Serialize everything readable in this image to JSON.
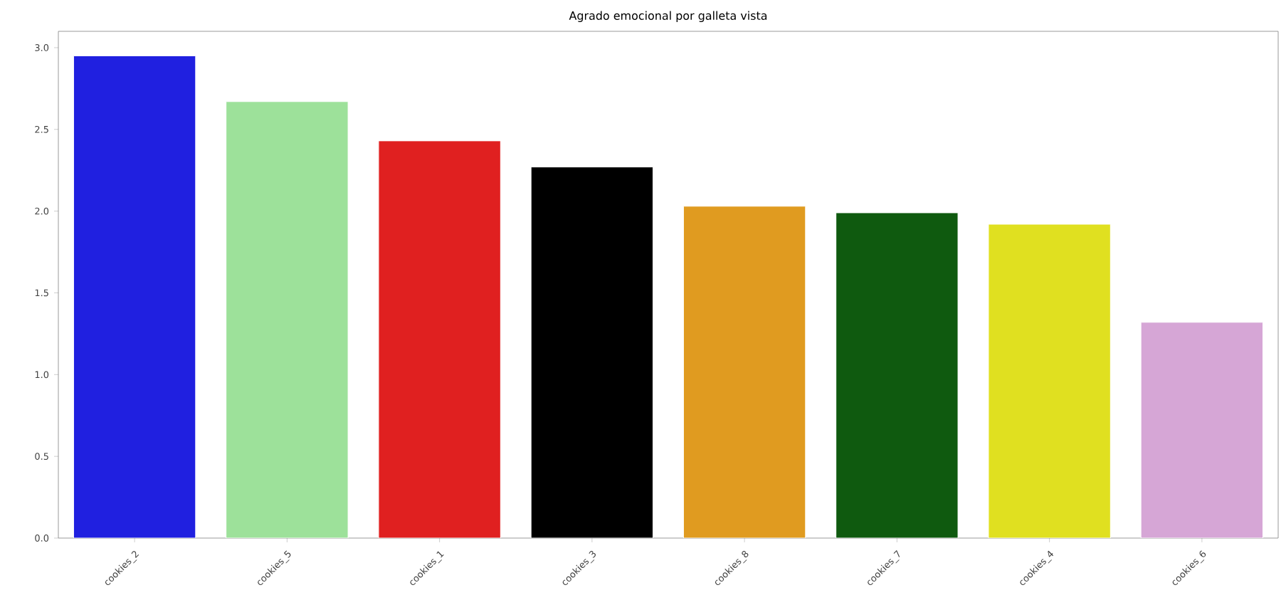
{
  "chart_data": {
    "type": "bar",
    "title": "Agrado emocional por galleta vista",
    "categories": [
      "cookies_2",
      "cookies_5",
      "cookies_1",
      "cookies_3",
      "cookies_8",
      "cookies_7",
      "cookies_4",
      "cookies_6"
    ],
    "values": [
      2.95,
      2.67,
      2.43,
      2.27,
      2.03,
      1.99,
      1.92,
      1.32
    ],
    "colors": [
      "#2020e0",
      "#9de19a",
      "#e02020",
      "#000000",
      "#e09b20",
      "#0f5a0f",
      "#e0e020",
      "#d6a6d6"
    ],
    "ylim": [
      0,
      3.1
    ],
    "yticks": [
      {
        "value": 0,
        "label": "0.0"
      },
      {
        "value": 0.5,
        "label": "0.5"
      },
      {
        "value": 1,
        "label": "1.0"
      },
      {
        "value": 1.5,
        "label": "1.5"
      },
      {
        "value": 2,
        "label": "2.0"
      },
      {
        "value": 2.5,
        "label": "2.5"
      },
      {
        "value": 3,
        "label": "3.0"
      }
    ],
    "grid": false
  }
}
